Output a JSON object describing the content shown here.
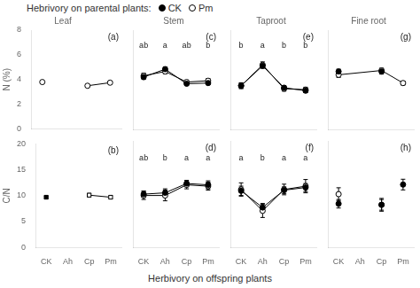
{
  "xlabel": "Herbivory on offspring plants",
  "legend_title": "Hebrivory on parental plants:",
  "chart_data": [
    {
      "type": "line",
      "title": "Leaf",
      "ylabel": "N (%)",
      "categories": [
        "CK",
        "Ah",
        "Cp",
        "Pm"
      ],
      "series": [
        {
          "name": "CK",
          "color": "#000000",
          "marker": "open_circle",
          "line_style": "none",
          "values": [
            3.8,
            null,
            null,
            null
          ],
          "errors": [
            0.0,
            null,
            null,
            null
          ]
        },
        {
          "name": "Pm",
          "color": "#000000",
          "marker": "open_circle",
          "line_style": "solid",
          "values": [
            null,
            null,
            3.5,
            3.75
          ],
          "errors": [
            null,
            null,
            0.08,
            0.1
          ]
        }
      ],
      "ylim": [
        0,
        8
      ],
      "yticks": [
        0,
        2,
        4,
        6,
        8
      ],
      "grid": false,
      "tick_labels": "y",
      "annotations": [
        {
          "text": "(a)",
          "position": "top right"
        }
      ]
    },
    {
      "type": "line",
      "title": "Stem",
      "categories": [
        "CK",
        "Ah",
        "Cp",
        "Pm"
      ],
      "series": [
        {
          "name": "CK",
          "color": "#000000",
          "marker": "filled_circle",
          "line_style": "solid",
          "values": [
            1.58,
            1.82,
            1.38,
            1.4
          ],
          "errors": [
            0.07,
            0.07,
            0.05,
            0.05
          ]
        },
        {
          "name": "Pm",
          "color": "#000000",
          "marker": "open_circle",
          "line_style": "solid",
          "values": [
            1.62,
            1.75,
            1.43,
            1.47
          ],
          "errors": [
            0.08,
            0.07,
            0.06,
            0.07
          ]
        }
      ],
      "ylim": [
        0.0,
        3.0
      ],
      "yticks": [
        0.0,
        0.5,
        1.0,
        1.5,
        2.0,
        2.5,
        3.0
      ],
      "grid": false,
      "tick_labels": false,
      "annotations": [
        {
          "text": "(c)",
          "position": "top right"
        },
        {
          "text": "ab",
          "x": "CK"
        },
        {
          "text": "a",
          "x": "Ah"
        },
        {
          "text": "ab",
          "x": "Cp"
        },
        {
          "text": "b",
          "x": "Pm"
        }
      ]
    },
    {
      "type": "line",
      "title": "Taproot",
      "categories": [
        "CK",
        "Ah",
        "Cp",
        "Pm"
      ],
      "series": [
        {
          "name": "CK",
          "color": "#000000",
          "marker": "filled_circle",
          "line_style": "solid",
          "values": [
            0.88,
            1.28,
            0.84,
            0.78
          ],
          "errors": [
            0.05,
            0.05,
            0.04,
            0.04
          ]
        },
        {
          "name": "Pm",
          "color": "#000000",
          "marker": "open_circle",
          "line_style": "solid",
          "values": [
            0.88,
            1.3,
            0.82,
            0.8
          ],
          "errors": [
            0.06,
            0.06,
            0.05,
            0.05
          ]
        }
      ],
      "ylim": [
        0.0,
        2.0
      ],
      "yticks": [
        0.0,
        0.5,
        1.0,
        1.5,
        2.0
      ],
      "grid": false,
      "tick_labels": false,
      "annotations": [
        {
          "text": "(e)",
          "position": "top right"
        },
        {
          "text": "b",
          "x": "CK"
        },
        {
          "text": "a",
          "x": "Ah"
        },
        {
          "text": "b",
          "x": "Cp"
        },
        {
          "text": "b",
          "x": "Pm"
        }
      ]
    },
    {
      "type": "line",
      "title": "Fine root",
      "categories": [
        "CK",
        "Ah",
        "Cp",
        "Pm"
      ],
      "series": [
        {
          "name": "CK",
          "color": "#000000",
          "marker": "filled_circle",
          "line_style": "none",
          "values": [
            1.75,
            null,
            1.75,
            null
          ],
          "errors": [
            0.07,
            null,
            0.08,
            null
          ]
        },
        {
          "name": "Pm",
          "color": "#000000",
          "marker": "open_circle",
          "line_style": "solid",
          "values": [
            1.65,
            null,
            1.78,
            1.4
          ],
          "errors": [
            0.08,
            null,
            0.07,
            0.06
          ]
        }
      ],
      "ylim": [
        0.0,
        3.0
      ],
      "yticks": [
        0.0,
        0.5,
        1.0,
        1.5,
        2.0,
        2.5,
        3.0
      ],
      "grid": false,
      "tick_labels": false,
      "annotations": [
        {
          "text": "(g)",
          "position": "top right"
        }
      ]
    },
    {
      "type": "line",
      "ylabel": "C/N",
      "categories": [
        "CK",
        "Ah",
        "Cp",
        "Pm"
      ],
      "series": [
        {
          "name": "CK",
          "color": "#000000",
          "marker": "filled_square",
          "line_style": "none",
          "values": [
            9.7,
            null,
            null,
            null
          ],
          "errors": [
            0.25,
            null,
            null,
            null
          ]
        },
        {
          "name": "Pm",
          "color": "#000000",
          "marker": "open_square",
          "line_style": "solid",
          "values": [
            null,
            null,
            10.1,
            9.7
          ],
          "errors": [
            null,
            null,
            0.35,
            0.3
          ]
        }
      ],
      "ylim": [
        0,
        20
      ],
      "yticks": [
        0,
        5,
        10,
        15,
        20
      ],
      "grid": false,
      "tick_labels": true,
      "annotations": [
        {
          "text": "(b)",
          "position": "top right"
        }
      ]
    },
    {
      "type": "line",
      "categories": [
        "CK",
        "Ah",
        "Cp",
        "Pm"
      ],
      "series": [
        {
          "name": "CK",
          "color": "#000000",
          "marker": "filled_circle",
          "line_style": "solid",
          "values": [
            20.0,
            20.5,
            24.0,
            23.5
          ],
          "errors": [
            1.2,
            1.5,
            1.2,
            1.5
          ]
        },
        {
          "name": "Pm",
          "color": "#000000",
          "marker": "open_circle",
          "line_style": "solid",
          "values": [
            19.5,
            19.5,
            23.5,
            23.0
          ],
          "errors": [
            1.5,
            2.0,
            1.5,
            1.5
          ]
        }
      ],
      "ylim": [
        0,
        40
      ],
      "yticks": [
        0,
        10,
        20,
        30,
        40
      ],
      "grid": false,
      "tick_labels": "x",
      "annotations": [
        {
          "text": "(d)",
          "position": "top right"
        },
        {
          "text": "ab",
          "x": "CK"
        },
        {
          "text": "b",
          "x": "Ah"
        },
        {
          "text": "a",
          "x": "Cp"
        },
        {
          "text": "a",
          "x": "Pm"
        }
      ]
    },
    {
      "type": "line",
      "categories": [
        "CK",
        "Ah",
        "Cp",
        "Pm"
      ],
      "series": [
        {
          "name": "CK",
          "color": "#000000",
          "marker": "filled_circle",
          "line_style": "solid",
          "values": [
            42.5,
            30.0,
            43.0,
            45.0
          ],
          "errors": [
            3.5,
            3.0,
            2.5,
            3.0
          ]
        },
        {
          "name": "Pm",
          "color": "#000000",
          "marker": "open_circle",
          "line_style": "solid",
          "values": [
            43.5,
            27.5,
            43.5,
            46.0
          ],
          "errors": [
            5.0,
            5.0,
            4.0,
            5.0
          ]
        }
      ],
      "ylim": [
        0,
        80
      ],
      "yticks": [
        0,
        20,
        40,
        60,
        80
      ],
      "grid": false,
      "tick_labels": "x",
      "annotations": [
        {
          "text": "(f)",
          "position": "top right"
        },
        {
          "text": "a",
          "x": "CK"
        },
        {
          "text": "b",
          "x": "Ah"
        },
        {
          "text": "a",
          "x": "Cp"
        },
        {
          "text": "a",
          "x": "Pm"
        }
      ]
    },
    {
      "type": "line",
      "categories": [
        "CK",
        "Ah",
        "Cp",
        "Pm"
      ],
      "series": [
        {
          "name": "CK",
          "color": "#000000",
          "marker": "filled_circle",
          "line_style": "none",
          "values": [
            20.5,
            null,
            20.0,
            29.5
          ],
          "errors": [
            2.0,
            null,
            2.5,
            2.5
          ]
        },
        {
          "name": "Pm",
          "color": "#000000",
          "marker": "open_circle",
          "line_style": "none",
          "values": [
            25.0,
            null,
            20.0,
            null
          ],
          "errors": [
            3.0,
            null,
            3.0,
            null
          ]
        }
      ],
      "ylim": [
        0,
        50
      ],
      "yticks": [
        0,
        10,
        20,
        30,
        40,
        50
      ],
      "grid": false,
      "tick_labels": "x",
      "annotations": [
        {
          "text": "(h)",
          "position": "top right"
        }
      ]
    }
  ]
}
